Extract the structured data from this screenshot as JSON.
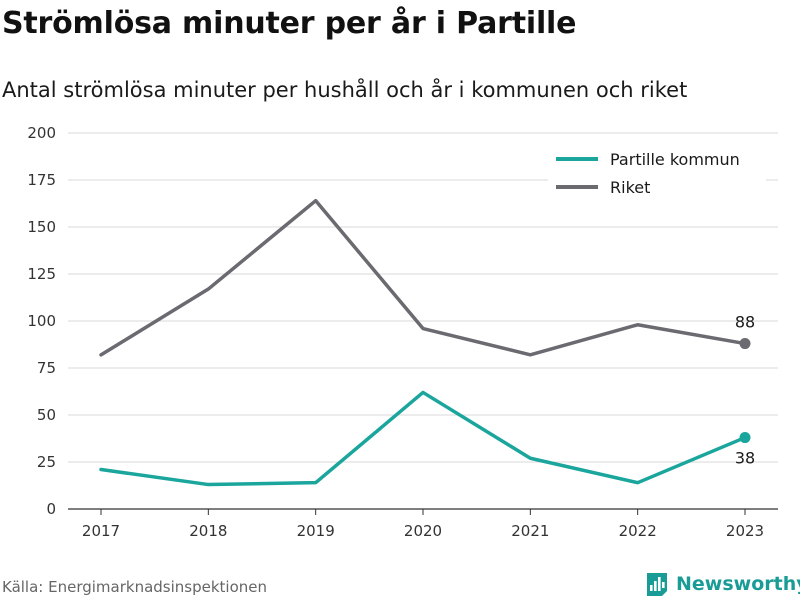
{
  "title": "Strömlösa minuter per år i Partille",
  "subtitle": "Antal strömlösa minuter per hushåll och år i kommunen och riket",
  "source": "Källa: Energimarknadsinspektionen",
  "brand": "Newsworthy",
  "chart_data": {
    "type": "line",
    "x": [
      "2017",
      "2018",
      "2019",
      "2020",
      "2021",
      "2022",
      "2023"
    ],
    "ylim": [
      0,
      200
    ],
    "yticks": [
      "0",
      "25",
      "50",
      "75",
      "100",
      "125",
      "150",
      "175",
      "200"
    ],
    "grid": true,
    "legend_position": "top-right",
    "series": [
      {
        "name": "Partille kommun",
        "color": "#1aa59d",
        "values": [
          21,
          13,
          14,
          62,
          27,
          14,
          38
        ],
        "end_label": "38"
      },
      {
        "name": "Riket",
        "color": "#6b6a70",
        "values": [
          82,
          117,
          164,
          96,
          82,
          98,
          88
        ],
        "end_label": "88"
      }
    ]
  }
}
